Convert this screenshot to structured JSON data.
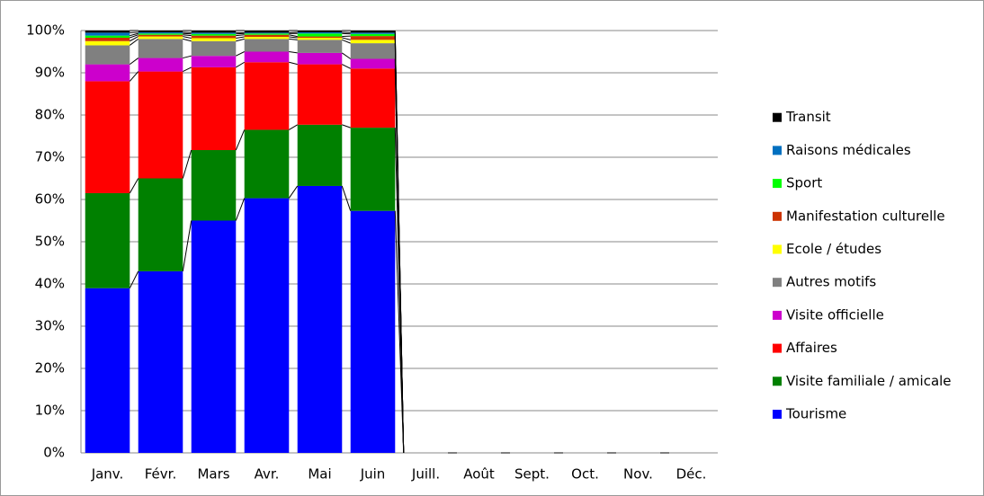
{
  "chart_data": {
    "type": "stacked_bar_100",
    "categories": [
      "Janv.",
      "Févr.",
      "Mars",
      "Avr.",
      "Mai",
      "Juin",
      "Juill.",
      "Août",
      "Sept.",
      "Oct.",
      "Nov.",
      "Déc."
    ],
    "series": [
      {
        "name": "Tourisme",
        "color": "#0000ff",
        "values": [
          39,
          43,
          55,
          60.3,
          63.2,
          57.3,
          0,
          0,
          0,
          0,
          0,
          0
        ]
      },
      {
        "name": "Visite familiale / amicale",
        "color": "#008000",
        "values": [
          22.5,
          22,
          16.7,
          16.2,
          14.5,
          19.7,
          0,
          0,
          0,
          0,
          0,
          0
        ]
      },
      {
        "name": "Affaires",
        "color": "#ff0000",
        "values": [
          26.5,
          25.3,
          19.6,
          16,
          14.3,
          14,
          0,
          0,
          0,
          0,
          0,
          0
        ]
      },
      {
        "name": "Visite officielle",
        "color": "#cc00cc",
        "values": [
          4,
          3.2,
          2.7,
          2.5,
          2.7,
          2.3,
          0,
          0,
          0,
          0,
          0,
          0
        ]
      },
      {
        "name": "Autres motifs",
        "color": "#808080",
        "values": [
          4.5,
          4.5,
          3.5,
          3,
          3.1,
          3.7,
          0,
          0,
          0,
          0,
          0,
          0
        ]
      },
      {
        "name": "Ecole / études",
        "color": "#ffff00",
        "values": [
          1,
          0.6,
          0.7,
          0.5,
          0.5,
          0.8,
          0,
          0,
          0,
          0,
          0,
          0
        ]
      },
      {
        "name": "Manifestation culturelle",
        "color": "#cc3300",
        "values": [
          0.8,
          0.4,
          0.6,
          0.5,
          0.3,
          0.9,
          0,
          0,
          0,
          0,
          0,
          0
        ]
      },
      {
        "name": "Sport",
        "color": "#00ff00",
        "values": [
          0.5,
          0.3,
          0.4,
          0.3,
          0.7,
          0.5,
          0,
          0,
          0,
          0,
          0,
          0
        ]
      },
      {
        "name": "Raisons médicales",
        "color": "#0070c0",
        "values": [
          0.7,
          0.3,
          0.3,
          0.2,
          0.3,
          0.3,
          0,
          0,
          0,
          0,
          0,
          0
        ]
      },
      {
        "name": "Transit",
        "color": "#000000",
        "values": [
          0.5,
          0.4,
          0.5,
          0.5,
          0.4,
          0.5,
          0,
          0,
          0,
          0,
          0,
          0
        ]
      }
    ],
    "ylim": [
      0,
      100
    ],
    "yticks": [
      {
        "value": 0,
        "label": "0%"
      },
      {
        "value": 10,
        "label": "10%"
      },
      {
        "value": 20,
        "label": "20%"
      },
      {
        "value": 30,
        "label": "30%"
      },
      {
        "value": 40,
        "label": "40%"
      },
      {
        "value": 50,
        "label": "50%"
      },
      {
        "value": 60,
        "label": "60%"
      },
      {
        "value": 70,
        "label": "70%"
      },
      {
        "value": 80,
        "label": "80%"
      },
      {
        "value": 90,
        "label": "90%"
      },
      {
        "value": 100,
        "label": "100%"
      }
    ],
    "grid": true,
    "legend": "right",
    "series_lines": true
  }
}
